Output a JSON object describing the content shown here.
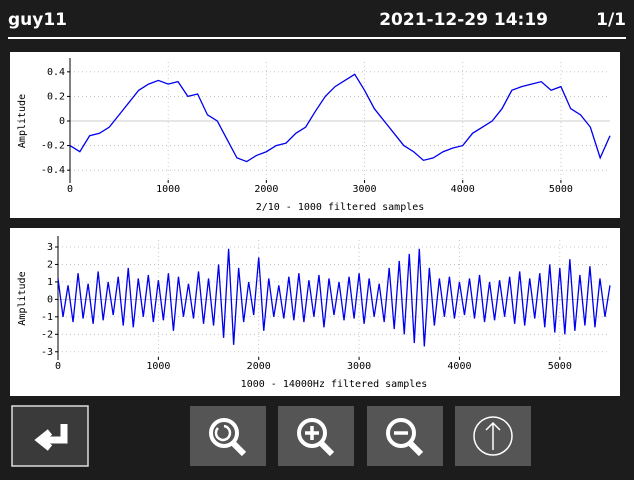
{
  "header": {
    "user": "guy11",
    "datetime": "2021-12-29 14:19",
    "page": "1/1"
  },
  "chart_data": [
    {
      "type": "line",
      "xlabel": "2/10 - 1000 filtered samples",
      "ylabel": "Amplitude",
      "color": "#0000ee",
      "grid": true,
      "xlim": [
        0,
        5500
      ],
      "xticks": [
        0,
        1000,
        2000,
        3000,
        4000,
        5000
      ],
      "ylim": [
        -0.48,
        0.48
      ],
      "yticks": [
        -0.4,
        -0.2,
        0,
        0.2,
        0.4
      ],
      "x": [
        0,
        100,
        200,
        300,
        400,
        500,
        600,
        700,
        800,
        900,
        1000,
        1100,
        1200,
        1300,
        1400,
        1500,
        1600,
        1700,
        1800,
        1900,
        2000,
        2100,
        2200,
        2300,
        2400,
        2500,
        2600,
        2700,
        2800,
        2900,
        3000,
        3100,
        3200,
        3300,
        3400,
        3500,
        3600,
        3700,
        3800,
        3900,
        4000,
        4100,
        4200,
        4300,
        4400,
        4500,
        4600,
        4700,
        4800,
        4900,
        5000,
        5100,
        5200,
        5300,
        5400,
        5500
      ],
      "values": [
        -0.2,
        -0.25,
        -0.12,
        -0.1,
        -0.05,
        0.05,
        0.15,
        0.25,
        0.3,
        0.33,
        0.3,
        0.32,
        0.2,
        0.22,
        0.05,
        0.0,
        -0.15,
        -0.3,
        -0.33,
        -0.28,
        -0.25,
        -0.2,
        -0.18,
        -0.1,
        -0.05,
        0.08,
        0.2,
        0.28,
        0.33,
        0.38,
        0.25,
        0.1,
        0.0,
        -0.1,
        -0.2,
        -0.25,
        -0.32,
        -0.3,
        -0.25,
        -0.22,
        -0.2,
        -0.1,
        -0.05,
        0.0,
        0.1,
        0.25,
        0.28,
        0.3,
        0.32,
        0.25,
        0.28,
        0.1,
        0.05,
        -0.05,
        -0.3,
        -0.12
      ]
    },
    {
      "type": "line",
      "xlabel": "1000 - 14000Hz filtered samples",
      "ylabel": "Amplitude",
      "color": "#0000ee",
      "grid": true,
      "xlim": [
        0,
        5500
      ],
      "xticks": [
        0,
        1000,
        2000,
        3000,
        4000,
        5000
      ],
      "ylim": [
        -3.3,
        3.4
      ],
      "yticks": [
        -3,
        -2,
        -1,
        0,
        1,
        2,
        3
      ],
      "x": [
        0,
        50,
        100,
        150,
        200,
        250,
        300,
        350,
        400,
        450,
        500,
        550,
        600,
        650,
        700,
        750,
        800,
        850,
        900,
        950,
        1000,
        1050,
        1100,
        1150,
        1200,
        1250,
        1300,
        1350,
        1400,
        1450,
        1500,
        1550,
        1600,
        1650,
        1700,
        1750,
        1800,
        1850,
        1900,
        1950,
        2000,
        2050,
        2100,
        2150,
        2200,
        2250,
        2300,
        2350,
        2400,
        2450,
        2500,
        2550,
        2600,
        2650,
        2700,
        2750,
        2800,
        2850,
        2900,
        2950,
        3000,
        3050,
        3100,
        3150,
        3200,
        3250,
        3300,
        3350,
        3400,
        3450,
        3500,
        3550,
        3600,
        3650,
        3700,
        3750,
        3800,
        3850,
        3900,
        3950,
        4000,
        4050,
        4100,
        4150,
        4200,
        4250,
        4300,
        4350,
        4400,
        4450,
        4500,
        4550,
        4600,
        4650,
        4700,
        4750,
        4800,
        4850,
        4900,
        4950,
        5000,
        5050,
        5100,
        5150,
        5200,
        5250,
        5300,
        5350,
        5400,
        5450,
        5500
      ],
      "values": [
        1.2,
        -1.0,
        0.8,
        -1.3,
        1.5,
        -1.1,
        0.9,
        -1.4,
        1.6,
        -1.2,
        1.0,
        -0.9,
        1.3,
        -1.5,
        1.8,
        -1.6,
        1.2,
        -1.0,
        1.4,
        -1.3,
        1.1,
        -1.2,
        1.5,
        -1.8,
        1.3,
        -1.0,
        0.9,
        -1.1,
        1.6,
        -1.4,
        1.2,
        -1.5,
        2.0,
        -2.2,
        2.9,
        -2.6,
        1.8,
        -1.3,
        1.0,
        -0.9,
        2.4,
        -1.8,
        1.2,
        -1.0,
        0.8,
        -1.1,
        1.3,
        -1.2,
        1.5,
        -1.3,
        1.1,
        -1.0,
        1.4,
        -1.6,
        1.2,
        -0.9,
        1.0,
        -1.2,
        1.3,
        -1.1,
        1.5,
        -1.4,
        1.2,
        -1.0,
        0.9,
        -1.3,
        1.8,
        -1.7,
        2.2,
        -2.0,
        2.6,
        -2.5,
        2.9,
        -2.7,
        1.8,
        -1.5,
        1.2,
        -1.0,
        1.3,
        -1.1,
        1.0,
        -0.9,
        1.2,
        -1.1,
        1.4,
        -1.3,
        1.0,
        -1.2,
        1.1,
        -1.0,
        1.3,
        -1.4,
        1.6,
        -1.5,
        1.2,
        -1.1,
        1.5,
        -1.6,
        2.0,
        -1.9,
        1.8,
        -2.0,
        2.3,
        -1.8,
        1.4,
        -1.5,
        1.9,
        -1.6,
        1.2,
        -1.0,
        0.8
      ]
    }
  ]
}
